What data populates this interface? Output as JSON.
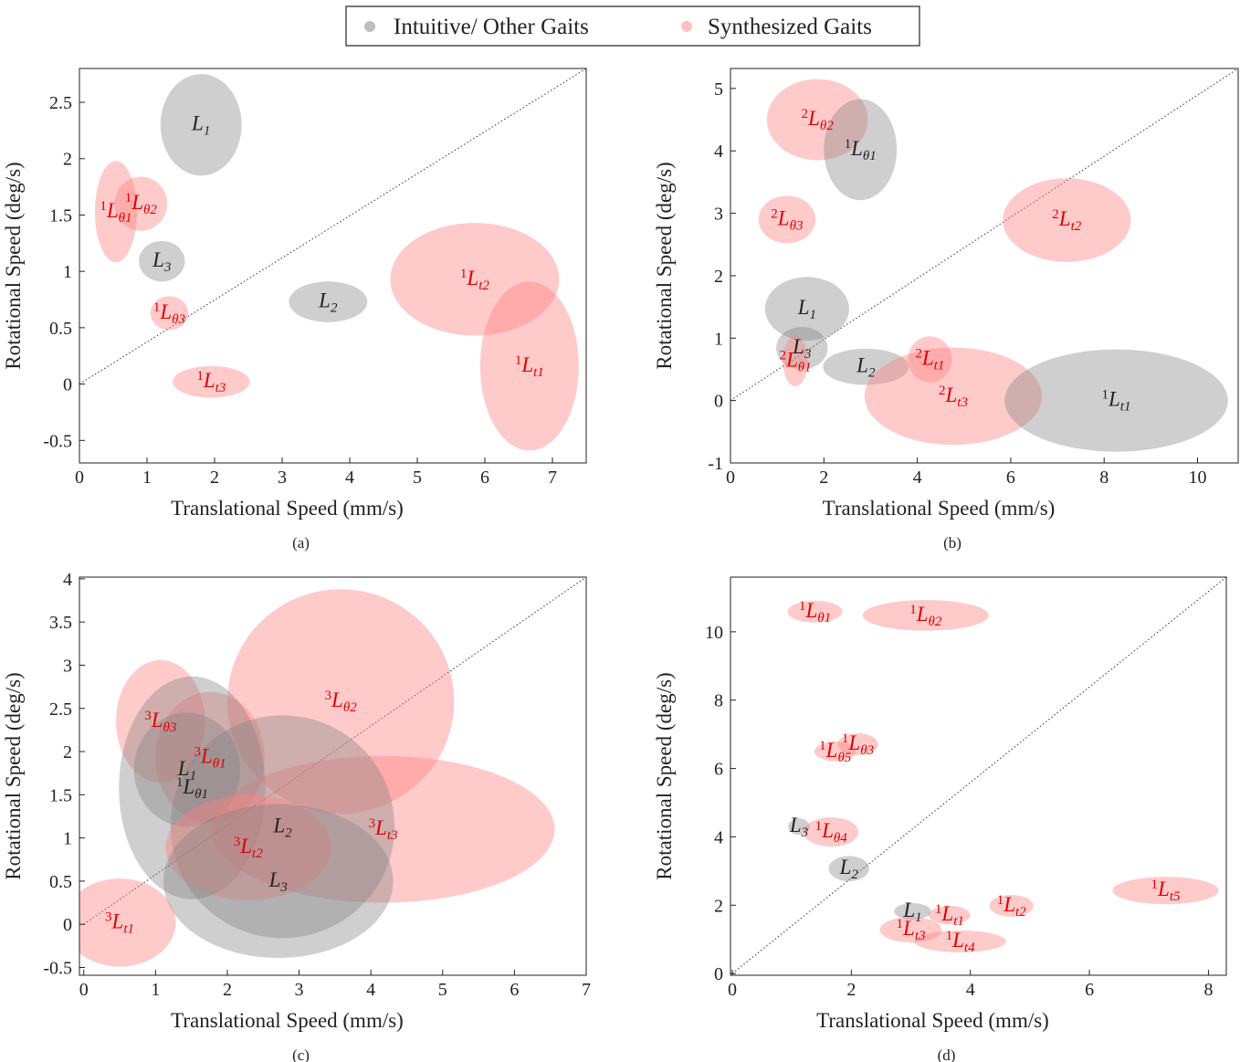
{
  "legend": {
    "series": [
      {
        "name": "Intuitive/ Other Gaits",
        "color": "#808080"
      },
      {
        "name": "Synthesized Gaits",
        "color": "#ff8080"
      }
    ]
  },
  "chart_data": [
    {
      "type": "ellipse",
      "caption": "(a)",
      "xlabel": "Translational Speed (mm/s)",
      "ylabel": "Rotational Speed (deg/s)",
      "xlim": [
        0,
        7.5
      ],
      "ylim": [
        -0.7,
        2.8
      ],
      "xticks": [
        0,
        1,
        2,
        3,
        4,
        5,
        6,
        7
      ],
      "yticks": [
        -0.5,
        0,
        0.5,
        1,
        1.5,
        2,
        2.5
      ],
      "diagonal": true,
      "ellipses": [
        {
          "base": "L",
          "sub": "1",
          "group": 0,
          "x": 1.8,
          "y": 2.3,
          "rx": 0.6,
          "ry": 0.45
        },
        {
          "base": "L",
          "sub": "3",
          "group": 0,
          "x": 1.22,
          "y": 1.09,
          "rx": 0.34,
          "ry": 0.18
        },
        {
          "base": "L",
          "sub": "2",
          "group": 0,
          "x": 3.68,
          "y": 0.73,
          "rx": 0.58,
          "ry": 0.18
        },
        {
          "sup": "1",
          "base": "L",
          "sub": "θ1",
          "group": 1,
          "x": 0.54,
          "y": 1.53,
          "rx": 0.31,
          "ry": 0.45
        },
        {
          "sup": "1",
          "base": "L",
          "sub": "θ2",
          "group": 1,
          "x": 0.91,
          "y": 1.6,
          "rx": 0.39,
          "ry": 0.24
        },
        {
          "sup": "1",
          "base": "L",
          "sub": "θ3",
          "group": 1,
          "x": 1.33,
          "y": 0.63,
          "rx": 0.28,
          "ry": 0.15
        },
        {
          "sup": "1",
          "base": "L",
          "sub": "t3",
          "group": 1,
          "x": 1.95,
          "y": 0.02,
          "rx": 0.57,
          "ry": 0.14
        },
        {
          "sup": "1",
          "base": "L",
          "sub": "t2",
          "group": 1,
          "x": 5.85,
          "y": 0.93,
          "rx": 1.25,
          "ry": 0.5
        },
        {
          "sup": "1",
          "base": "L",
          "sub": "t1",
          "group": 1,
          "x": 6.66,
          "y": 0.16,
          "rx": 0.73,
          "ry": 0.75
        }
      ]
    },
    {
      "type": "ellipse",
      "caption": "(b)",
      "xlabel": "Translational Speed (mm/s)",
      "ylabel": "Rotational Speed (deg/s)",
      "xlim": [
        0,
        10.87
      ],
      "ylim": [
        -1,
        5.32
      ],
      "xticks": [
        0,
        2,
        4,
        6,
        8,
        10
      ],
      "yticks": [
        -1,
        0,
        1,
        2,
        3,
        4,
        5
      ],
      "diagonal": true,
      "ellipses": [
        {
          "sup": "2",
          "base": "L",
          "sub": "θ2",
          "group": 1,
          "x": 1.86,
          "y": 4.5,
          "rx": 1.08,
          "ry": 0.65
        },
        {
          "sup": "1",
          "base": "L",
          "sub": "θ1",
          "group": 0,
          "x": 2.78,
          "y": 4.02,
          "rx": 0.78,
          "ry": 0.81
        },
        {
          "sup": "2",
          "base": "L",
          "sub": "θ3",
          "group": 1,
          "x": 1.21,
          "y": 2.9,
          "rx": 0.61,
          "ry": 0.38
        },
        {
          "sup": "2",
          "base": "L",
          "sub": "t2",
          "group": 1,
          "x": 7.2,
          "y": 2.89,
          "rx": 1.37,
          "ry": 0.67
        },
        {
          "base": "L",
          "sub": "1",
          "group": 0,
          "x": 1.64,
          "y": 1.47,
          "rx": 0.9,
          "ry": 0.51
        },
        {
          "base": "L",
          "sub": "3",
          "group": 0,
          "x": 1.53,
          "y": 0.84,
          "rx": 0.55,
          "ry": 0.34
        },
        {
          "sup": "2",
          "base": "L",
          "sub": "θ1",
          "group": 1,
          "x": 1.39,
          "y": 0.63,
          "rx": 0.27,
          "ry": 0.4
        },
        {
          "base": "L",
          "sub": "2",
          "group": 0,
          "x": 2.9,
          "y": 0.54,
          "rx": 0.92,
          "ry": 0.29
        },
        {
          "sup": "2",
          "base": "L",
          "sub": "t1",
          "group": 1,
          "x": 4.27,
          "y": 0.66,
          "rx": 0.47,
          "ry": 0.37
        },
        {
          "sup": "2",
          "base": "L",
          "sub": "t3",
          "group": 1,
          "x": 4.77,
          "y": 0.07,
          "rx": 1.9,
          "ry": 0.78
        },
        {
          "sup": "1",
          "base": "L",
          "sub": "t1",
          "group": 0,
          "x": 8.26,
          "y": 0,
          "rx": 2.39,
          "ry": 0.82
        }
      ]
    },
    {
      "type": "ellipse",
      "caption": "(c)",
      "xlabel": "Translational Speed (mm/s)",
      "ylabel": "Rotational Speed (deg/s)",
      "xlim": [
        -0.06,
        7
      ],
      "ylim": [
        -0.59,
        4.02
      ],
      "xticks": [
        0,
        1,
        2,
        3,
        4,
        5,
        6,
        7
      ],
      "yticks": [
        -0.5,
        0,
        0.5,
        1,
        1.5,
        2,
        2.5,
        3,
        3.5,
        4
      ],
      "diagonal": true,
      "ellipses": [
        {
          "sup": "3",
          "base": "L",
          "sub": "θ2",
          "group": 1,
          "x": 3.58,
          "y": 2.58,
          "rx": 1.58,
          "ry": 1.3
        },
        {
          "sup": "3",
          "base": "L",
          "sub": "θ3",
          "group": 1,
          "x": 1.07,
          "y": 2.35,
          "rx": 0.62,
          "ry": 0.71
        },
        {
          "sup": "3",
          "base": "L",
          "sub": "θ1",
          "group": 1,
          "x": 1.76,
          "y": 1.93,
          "rx": 0.76,
          "ry": 0.76
        },
        {
          "sup": "1",
          "base": "L",
          "sub": "θ1",
          "group": 0,
          "x": 1.51,
          "y": 1.58,
          "rx": 1.02,
          "ry": 1.29
        },
        {
          "base": "L",
          "sub": "1",
          "group": 0,
          "x": 1.44,
          "y": 1.79,
          "rx": 0.74,
          "ry": 0.66
        },
        {
          "sup": "3",
          "base": "L",
          "sub": "t3",
          "group": 1,
          "x": 4.17,
          "y": 1.1,
          "rx": 2.39,
          "ry": 0.85
        },
        {
          "base": "L",
          "sub": "2",
          "group": 0,
          "x": 2.77,
          "y": 1.13,
          "rx": 1.56,
          "ry": 1.29
        },
        {
          "sup": "3",
          "base": "L",
          "sub": "t2",
          "group": 1,
          "x": 2.29,
          "y": 0.89,
          "rx": 1.15,
          "ry": 0.61
        },
        {
          "base": "L",
          "sub": "3",
          "group": 0,
          "x": 2.71,
          "y": 0.5,
          "rx": 1.6,
          "ry": 0.89
        },
        {
          "sup": "3",
          "base": "L",
          "sub": "t1",
          "group": 1,
          "x": 0.5,
          "y": 0.02,
          "rx": 0.78,
          "ry": 0.51
        }
      ]
    },
    {
      "type": "ellipse",
      "caption": "(d)",
      "xlabel": "Translational Speed (mm/s)",
      "ylabel": "Rotational Speed (deg/s)",
      "xlim": [
        -0.03,
        8.3
      ],
      "ylim": [
        -0.05,
        11.6
      ],
      "xticks": [
        0,
        2,
        4,
        6,
        8
      ],
      "yticks": [
        0,
        2,
        4,
        6,
        8,
        10
      ],
      "diagonal": true,
      "ellipses": [
        {
          "sup": "1",
          "base": "L",
          "sub": "θ1",
          "group": 1,
          "x": 1.39,
          "y": 10.59,
          "rx": 0.46,
          "ry": 0.32
        },
        {
          "sup": "1",
          "base": "L",
          "sub": "θ2",
          "group": 1,
          "x": 3.25,
          "y": 10.48,
          "rx": 1.06,
          "ry": 0.45
        },
        {
          "sup": "1",
          "base": "L",
          "sub": "θ3",
          "group": 1,
          "x": 2.11,
          "y": 6.71,
          "rx": 0.34,
          "ry": 0.32
        },
        {
          "sup": "1",
          "base": "L",
          "sub": "θ5",
          "group": 1,
          "x": 1.73,
          "y": 6.5,
          "rx": 0.35,
          "ry": 0.29
        },
        {
          "base": "L",
          "sub": "3",
          "group": 0,
          "x": 1.12,
          "y": 4.3,
          "rx": 0.18,
          "ry": 0.24
        },
        {
          "sup": "1",
          "base": "L",
          "sub": "θ4",
          "group": 1,
          "x": 1.66,
          "y": 4.14,
          "rx": 0.46,
          "ry": 0.43
        },
        {
          "base": "L",
          "sub": "2",
          "group": 0,
          "x": 1.96,
          "y": 3.07,
          "rx": 0.34,
          "ry": 0.37
        },
        {
          "sup": "1",
          "base": "L",
          "sub": "t5",
          "group": 1,
          "x": 7.28,
          "y": 2.43,
          "rx": 0.89,
          "ry": 0.4
        },
        {
          "sup": "1",
          "base": "L",
          "sub": "t2",
          "group": 1,
          "x": 4.69,
          "y": 1.98,
          "rx": 0.37,
          "ry": 0.32
        },
        {
          "base": "L",
          "sub": "1",
          "group": 0,
          "x": 3.03,
          "y": 1.82,
          "rx": 0.31,
          "ry": 0.24
        },
        {
          "sup": "1",
          "base": "L",
          "sub": "t1",
          "group": 1,
          "x": 3.65,
          "y": 1.71,
          "rx": 0.35,
          "ry": 0.27
        },
        {
          "sup": "1",
          "base": "L",
          "sub": "t3",
          "group": 1,
          "x": 3.0,
          "y": 1.28,
          "rx": 0.52,
          "ry": 0.37
        },
        {
          "sup": "1",
          "base": "L",
          "sub": "t4",
          "group": 1,
          "x": 3.83,
          "y": 0.94,
          "rx": 0.77,
          "ry": 0.32
        }
      ]
    }
  ]
}
